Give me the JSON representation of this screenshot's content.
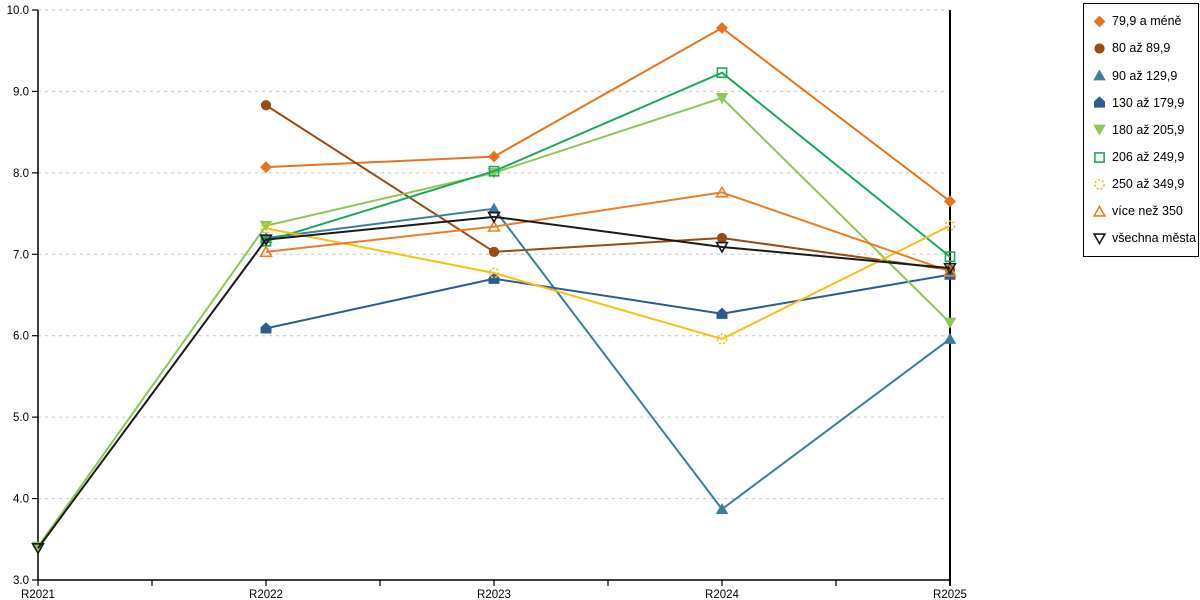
{
  "chart_data": {
    "type": "line",
    "title": "",
    "xlabel": "",
    "ylabel": "",
    "x": [
      "R2021",
      "R2022",
      "R2023",
      "R2024",
      "R2025"
    ],
    "ylim": [
      3.0,
      10.0
    ],
    "ytick_step": 1.0,
    "y_tick_labels": [
      "3.0",
      "4.0",
      "5.0",
      "6.0",
      "7.0",
      "8.0",
      "9.0",
      "10.0"
    ],
    "grid": "horizontal-dashed",
    "grid_color": "#c6c6c6",
    "axis_color": "#000000",
    "legend_position": "right-outside",
    "series": [
      {
        "name": "79,9 a méně",
        "color": "#E8731C",
        "marker": "diamond",
        "fill": "solid",
        "values": [
          null,
          8.07,
          8.2,
          9.78,
          7.65
        ]
      },
      {
        "name": "80 až 89,9",
        "color": "#974C14",
        "marker": "circle",
        "fill": "solid",
        "values": [
          null,
          8.83,
          7.03,
          7.2,
          6.81
        ]
      },
      {
        "name": "90 až 129,9",
        "color": "#3D7E99",
        "marker": "triangle-up",
        "fill": "solid",
        "values": [
          null,
          7.2,
          7.56,
          3.87,
          5.96
        ]
      },
      {
        "name": "130 až 179,9",
        "color": "#2E5C8F",
        "marker": "pentagon",
        "fill": "solid",
        "values": [
          null,
          6.09,
          6.7,
          6.27,
          6.75
        ]
      },
      {
        "name": "180 až 205,9",
        "color": "#8EC758",
        "marker": "triangle-down",
        "fill": "solid",
        "values": [
          3.41,
          7.35,
          8.0,
          8.92,
          6.16
        ]
      },
      {
        "name": "206 až 249,9",
        "color": "#1EA75C",
        "marker": "square",
        "fill": "open",
        "values": [
          null,
          7.16,
          8.02,
          9.23,
          6.97
        ]
      },
      {
        "name": "250 až 349,9",
        "color": "#F2C214",
        "marker": "circle-dashed",
        "fill": "open",
        "values": [
          null,
          7.32,
          6.77,
          5.96,
          7.35
        ]
      },
      {
        "name": "více než 350",
        "color": "#ED7D23",
        "marker": "triangle-up",
        "fill": "open",
        "values": [
          null,
          7.03,
          7.34,
          7.76,
          6.79
        ]
      },
      {
        "name": "všechna města",
        "color": "#1A1A1A",
        "marker": "triangle-down",
        "fill": "open",
        "values": [
          3.39,
          7.18,
          7.46,
          7.09,
          6.83
        ]
      }
    ]
  }
}
